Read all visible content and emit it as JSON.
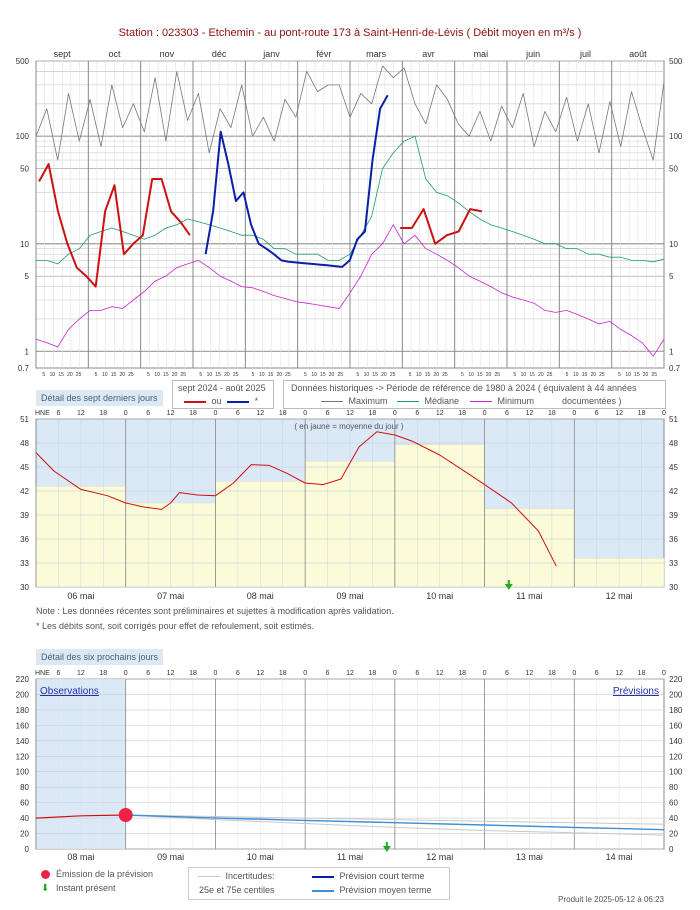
{
  "title": "Station : 023303     -   Etchemin - au pont-route 173 à Saint-Henri-de-Lévis   ( Débit moyen en m³/s )",
  "colors": {
    "current": "#cc1111",
    "corrected": "#0a1fa8",
    "maximum": "#777777",
    "median": "#1a9a78",
    "minimum": "#cc22cc",
    "obs_bg": "#dbe9f7",
    "mean_fill": "#fbfbd9",
    "forecast_short": "#0a1fa8",
    "forecast_medium": "#3a8fd8",
    "uncertainty": "#c8c8c8",
    "emission": "#ee2244",
    "now": "#22aa22"
  },
  "labels": {
    "detail_past": "Détail des sept derniers jours",
    "detail_future": "Détail des six prochains jours",
    "period_current": "sept 2024 - août 2025",
    "ou": "ou",
    "star": "*",
    "hist_header": "Données historiques -> Période de référence  de 1980 à 2024   ( équivalent à 44 années",
    "hist_documented": "documentées )",
    "maximum": "Maximum",
    "median": "Médiane",
    "minimum": "Minimum",
    "yellow_note": "( en jaune = moyenne du jour )",
    "note1": "Note : Les données récentes sont préliminaires et sujettes à modification après validation.",
    "note2": "* Les débits sont, soit corrigés pour effet de refoulement, soit estimés.",
    "observations": "Observations",
    "previsions": "Prévisions",
    "emission": "Émission de la prévision",
    "present": "Instant présent",
    "uncertainties": "Incertitudes:",
    "percentiles": "25e et 75e centiles",
    "short_term": "Prévision court terme",
    "medium_term": "Prévision moyen terme",
    "footer": "Produit le 2025-05-12 à 06:23",
    "hne": "HNE"
  },
  "chart_data": [
    {
      "type": "line",
      "name": "annual",
      "scale": "log",
      "months": [
        "sept",
        "oct",
        "nov",
        "déc",
        "janv",
        "févr",
        "mars",
        "avr",
        "mai",
        "juin",
        "juil",
        "août"
      ],
      "ylim": [
        0.7,
        500
      ],
      "yticks": [
        "500",
        "100",
        "50",
        "10",
        "5",
        "1",
        "0.7"
      ],
      "day_ticks": [
        "5",
        "10",
        "15",
        "20",
        "25"
      ],
      "series": [
        {
          "name": "Maximum",
          "values": [
            100,
            180,
            60,
            250,
            90,
            220,
            80,
            300,
            120,
            200,
            110,
            350,
            90,
            400,
            140,
            250,
            70,
            180,
            120,
            300,
            100,
            150,
            90,
            220,
            150,
            400,
            260,
            300,
            300,
            150,
            250,
            200,
            450,
            350,
            430,
            200,
            130,
            300,
            220,
            130,
            100,
            170,
            90,
            190,
            120,
            250,
            80,
            170,
            110,
            230,
            90,
            200,
            70,
            210,
            80,
            260,
            120,
            60,
            320
          ]
        },
        {
          "name": "Médiane",
          "values": [
            7,
            7,
            6.5,
            8,
            9,
            12,
            13,
            14,
            13,
            12,
            11,
            12,
            14,
            15,
            17,
            16,
            15,
            14,
            13,
            12,
            12,
            11,
            9,
            9,
            8,
            8,
            8,
            7,
            7,
            8,
            12,
            18,
            50,
            70,
            90,
            100,
            40,
            30,
            28,
            24,
            20,
            17,
            15,
            14,
            13,
            12,
            11,
            10,
            10,
            9,
            9,
            8,
            8,
            7.5,
            7.5,
            7,
            7,
            6.8,
            7.2
          ]
        },
        {
          "name": "Minimum",
          "values": [
            1.3,
            1.2,
            1.1,
            1.6,
            2.0,
            2.4,
            2.4,
            2.6,
            2.5,
            3,
            3.6,
            4.5,
            5,
            6,
            6.5,
            7,
            6,
            5,
            4.5,
            4,
            3.9,
            3.6,
            3.3,
            3.1,
            2.9,
            2.8,
            2.7,
            2.6,
            2.5,
            3.5,
            5,
            8,
            10,
            15,
            10,
            12,
            9,
            8,
            7,
            6,
            5,
            4.5,
            4,
            3.5,
            3.2,
            3.0,
            2.8,
            2.4,
            2.3,
            2.4,
            2.2,
            2.0,
            1.8,
            1.9,
            1.6,
            1.4,
            1.2,
            0.9,
            1.3
          ]
        },
        {
          "name": "sept 2024 - août 2025",
          "values": [
            38,
            55,
            20,
            10,
            6,
            5,
            4,
            20,
            35,
            8,
            10,
            12,
            40,
            40,
            20,
            16,
            12,
            14,
            14,
            21,
            10,
            12,
            13,
            21,
            20
          ]
        },
        {
          "name": "*",
          "values": [
            8,
            20,
            110,
            55,
            25,
            30,
            15,
            10,
            9,
            8,
            7,
            6.8,
            6.7,
            6.6,
            6.5,
            6.4,
            6.3,
            6.2,
            6.1,
            7,
            11,
            13,
            60,
            180,
            240
          ]
        }
      ]
    },
    {
      "type": "line",
      "name": "past_week",
      "ylim": [
        30,
        51
      ],
      "yticks": [
        30,
        33,
        36,
        39,
        42,
        45,
        48,
        51
      ],
      "days": [
        "06 mai",
        "07 mai",
        "08 mai",
        "09 mai",
        "10 mai",
        "11 mai",
        "12 mai"
      ],
      "hours": [
        "6",
        "12",
        "18",
        "0"
      ],
      "daily_mean": [
        42.6,
        40.5,
        43.2,
        45.7,
        47.8,
        39.8,
        33.6
      ],
      "x": [
        0,
        0.2,
        0.5,
        0.8,
        1.0,
        1.2,
        1.4,
        1.5,
        1.6,
        1.8,
        2.0,
        2.2,
        2.4,
        2.6,
        2.8,
        3.0,
        3.2,
        3.4,
        3.6,
        3.8,
        4.0,
        4.2,
        4.5,
        4.8,
        5.0,
        5.3,
        5.6,
        5.8
      ],
      "values": [
        46.8,
        44.5,
        42.2,
        41.4,
        40.5,
        40.0,
        39.7,
        40.5,
        41.8,
        41.5,
        41.4,
        43.0,
        45.3,
        45.2,
        44.2,
        43.0,
        42.8,
        43.5,
        47.5,
        49.4,
        49.0,
        48.2,
        46.5,
        44.3,
        42.8,
        40.5,
        37.0,
        32.6
      ]
    },
    {
      "type": "line",
      "name": "forecast",
      "ylim": [
        0,
        220
      ],
      "yticks": [
        0,
        20,
        40,
        60,
        80,
        100,
        120,
        140,
        160,
        180,
        200,
        220
      ],
      "days": [
        "08 mai",
        "09 mai",
        "10 mai",
        "11 mai",
        "12 mai",
        "13 mai",
        "14 mai"
      ],
      "hours": [
        "6",
        "12",
        "18",
        "0"
      ],
      "observed": {
        "x": [
          0,
          0.5,
          1.0
        ],
        "values": [
          40,
          43,
          44
        ]
      },
      "forecast_median": {
        "x": [
          1.0,
          2,
          3,
          4,
          5,
          6,
          7
        ],
        "values": [
          44,
          40,
          37,
          34,
          31,
          28,
          25
        ]
      },
      "p25": {
        "x": [
          1.0,
          2,
          3,
          4,
          5,
          6,
          7
        ],
        "values": [
          44,
          38,
          33,
          28,
          24,
          21,
          18
        ]
      },
      "p75": {
        "x": [
          1.0,
          2,
          3,
          4,
          5,
          6,
          7
        ],
        "values": [
          44,
          42,
          40,
          38,
          36,
          34,
          32
        ]
      },
      "emission": {
        "x": 1.0,
        "value": 44
      }
    }
  ]
}
